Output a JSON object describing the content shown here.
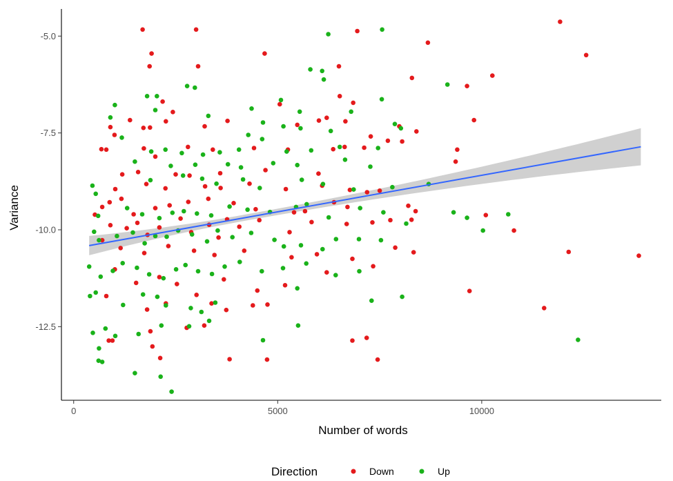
{
  "chart_data": {
    "type": "scatter",
    "xlabel": "Number of words",
    "ylabel": "Variance",
    "xlim": [
      -300,
      14400
    ],
    "ylim": [
      -14.4,
      -4.3
    ],
    "x_ticks": [
      {
        "value": 0,
        "label": "0"
      },
      {
        "value": 5000,
        "label": "5000"
      },
      {
        "value": 10000,
        "label": "10000"
      }
    ],
    "y_ticks": [
      {
        "value": -5.0,
        "label": "-5.0"
      },
      {
        "value": -7.5,
        "label": "-7.5"
      },
      {
        "value": -10.0,
        "label": "-10.0"
      },
      {
        "value": -12.5,
        "label": "-12.5"
      }
    ],
    "grid": false,
    "legend": {
      "title": "Direction",
      "position": "bottom"
    },
    "trend": {
      "method": "linear",
      "x_range": [
        380,
        13900
      ],
      "intercept": -10.48,
      "slope": 0.0001887,
      "ci_halfwidth_ends": [
        0.25,
        0.48
      ],
      "ci_halfwidth_center": 0.08,
      "center_x": 4200,
      "color": "#3366FF",
      "band_color": "#C8C8C8"
    },
    "series": [
      {
        "name": "Down",
        "color": "#E41A1C",
        "points": [
          [
            1690,
            -4.83
          ],
          [
            3000,
            -4.83
          ],
          [
            6950,
            -4.87
          ],
          [
            11920,
            -4.63
          ],
          [
            12560,
            -5.49
          ],
          [
            8680,
            -5.17
          ],
          [
            1910,
            -5.45
          ],
          [
            1860,
            -5.78
          ],
          [
            3050,
            -5.78
          ],
          [
            4680,
            -5.45
          ],
          [
            6500,
            -5.78
          ],
          [
            8290,
            -6.08
          ],
          [
            10260,
            -6.02
          ],
          [
            9640,
            -6.29
          ],
          [
            6520,
            -6.55
          ],
          [
            2180,
            -6.69
          ],
          [
            2430,
            -6.96
          ],
          [
            5050,
            -6.76
          ],
          [
            6850,
            -6.72
          ],
          [
            900,
            -7.35
          ],
          [
            1000,
            -7.55
          ],
          [
            1380,
            -7.17
          ],
          [
            1710,
            -7.37
          ],
          [
            1870,
            -7.36
          ],
          [
            2260,
            -7.2
          ],
          [
            3210,
            -7.33
          ],
          [
            3770,
            -7.19
          ],
          [
            5480,
            -7.29
          ],
          [
            6010,
            -7.18
          ],
          [
            6200,
            -7.11
          ],
          [
            6660,
            -7.2
          ],
          [
            7980,
            -7.33
          ],
          [
            8400,
            -7.46
          ],
          [
            9810,
            -7.17
          ],
          [
            7700,
            -7.7
          ],
          [
            8050,
            -7.72
          ],
          [
            7280,
            -7.59
          ],
          [
            680,
            -7.92
          ],
          [
            800,
            -7.93
          ],
          [
            1720,
            -7.9
          ],
          [
            2800,
            -7.86
          ],
          [
            3410,
            -7.93
          ],
          [
            4420,
            -7.89
          ],
          [
            5250,
            -7.93
          ],
          [
            6360,
            -7.92
          ],
          [
            6640,
            -7.86
          ],
          [
            7120,
            -7.88
          ],
          [
            9400,
            -7.93
          ],
          [
            2000,
            -8.11
          ],
          [
            9360,
            -8.24
          ],
          [
            1190,
            -8.57
          ],
          [
            1580,
            -8.51
          ],
          [
            2500,
            -8.57
          ],
          [
            2840,
            -8.6
          ],
          [
            3590,
            -8.54
          ],
          [
            4700,
            -8.46
          ],
          [
            6000,
            -8.55
          ],
          [
            1020,
            -8.95
          ],
          [
            1780,
            -8.82
          ],
          [
            2250,
            -8.93
          ],
          [
            3220,
            -8.88
          ],
          [
            3600,
            -8.92
          ],
          [
            4310,
            -8.81
          ],
          [
            5200,
            -8.95
          ],
          [
            6090,
            -8.86
          ],
          [
            6770,
            -8.97
          ],
          [
            7190,
            -9.03
          ],
          [
            7500,
            -8.99
          ],
          [
            520,
            -9.61
          ],
          [
            700,
            -9.41
          ],
          [
            880,
            -9.29
          ],
          [
            1170,
            -9.2
          ],
          [
            1470,
            -9.6
          ],
          [
            2000,
            -9.44
          ],
          [
            2350,
            -9.37
          ],
          [
            2810,
            -9.28
          ],
          [
            3300,
            -9.2
          ],
          [
            3920,
            -9.31
          ],
          [
            4460,
            -9.47
          ],
          [
            5400,
            -9.55
          ],
          [
            5670,
            -9.52
          ],
          [
            6380,
            -9.29
          ],
          [
            6710,
            -9.41
          ],
          [
            8200,
            -9.38
          ],
          [
            8380,
            -9.52
          ],
          [
            900,
            -9.88
          ],
          [
            1300,
            -9.96
          ],
          [
            1560,
            -9.82
          ],
          [
            1810,
            -10.13
          ],
          [
            2100,
            -9.94
          ],
          [
            2620,
            -9.71
          ],
          [
            2880,
            -10.06
          ],
          [
            3320,
            -9.87
          ],
          [
            3550,
            -10.2
          ],
          [
            3760,
            -9.73
          ],
          [
            4060,
            -9.92
          ],
          [
            4550,
            -9.75
          ],
          [
            5290,
            -10.06
          ],
          [
            5830,
            -9.8
          ],
          [
            6690,
            -9.85
          ],
          [
            7320,
            -9.81
          ],
          [
            7760,
            -9.75
          ],
          [
            8280,
            -9.74
          ],
          [
            10100,
            -9.62
          ],
          [
            10790,
            -10.02
          ],
          [
            700,
            -10.27
          ],
          [
            1150,
            -10.47
          ],
          [
            1730,
            -10.6
          ],
          [
            2320,
            -10.42
          ],
          [
            2950,
            -10.54
          ],
          [
            3450,
            -10.65
          ],
          [
            4180,
            -10.54
          ],
          [
            5340,
            -10.71
          ],
          [
            5960,
            -10.63
          ],
          [
            6830,
            -10.75
          ],
          [
            7880,
            -10.46
          ],
          [
            8330,
            -10.58
          ],
          [
            13850,
            -10.67
          ],
          [
            12130,
            -10.57
          ],
          [
            800,
            -11.71
          ],
          [
            1010,
            -11.02
          ],
          [
            1530,
            -11.37
          ],
          [
            2100,
            -11.22
          ],
          [
            2530,
            -11.4
          ],
          [
            3010,
            -11.68
          ],
          [
            3680,
            -11.28
          ],
          [
            4500,
            -11.57
          ],
          [
            5180,
            -11.43
          ],
          [
            6200,
            -11.1
          ],
          [
            7340,
            -10.94
          ],
          [
            9700,
            -11.58
          ],
          [
            1800,
            -12.06
          ],
          [
            2260,
            -11.9
          ],
          [
            3380,
            -11.9
          ],
          [
            3740,
            -12.07
          ],
          [
            4390,
            -11.95
          ],
          [
            4750,
            -11.93
          ],
          [
            1880,
            -12.62
          ],
          [
            2770,
            -12.53
          ],
          [
            3200,
            -12.47
          ],
          [
            860,
            -12.86
          ],
          [
            950,
            -12.86
          ],
          [
            1930,
            -13.01
          ],
          [
            2120,
            -13.31
          ],
          [
            3820,
            -13.34
          ],
          [
            4740,
            -13.35
          ],
          [
            6830,
            -12.86
          ],
          [
            7180,
            -12.79
          ],
          [
            7450,
            -13.35
          ],
          [
            11530,
            -12.02
          ]
        ]
      },
      {
        "name": "Up",
        "color": "#1AB21A",
        "points": [
          [
            7560,
            -4.83
          ],
          [
            6240,
            -4.95
          ],
          [
            5800,
            -5.86
          ],
          [
            6090,
            -5.9
          ],
          [
            6130,
            -6.12
          ],
          [
            2780,
            -6.29
          ],
          [
            9160,
            -6.25
          ],
          [
            2970,
            -6.33
          ],
          [
            1800,
            -6.55
          ],
          [
            2040,
            -6.55
          ],
          [
            1010,
            -6.78
          ],
          [
            5080,
            -6.65
          ],
          [
            4360,
            -6.87
          ],
          [
            5540,
            -6.95
          ],
          [
            6800,
            -6.95
          ],
          [
            7550,
            -6.63
          ],
          [
            2000,
            -6.91
          ],
          [
            900,
            -7.1
          ],
          [
            1180,
            -7.62
          ],
          [
            3300,
            -7.06
          ],
          [
            4640,
            -7.23
          ],
          [
            5140,
            -7.33
          ],
          [
            5560,
            -7.38
          ],
          [
            6300,
            -7.45
          ],
          [
            7870,
            -7.27
          ],
          [
            8020,
            -7.38
          ],
          [
            4280,
            -7.55
          ],
          [
            4620,
            -7.66
          ],
          [
            1900,
            -7.98
          ],
          [
            2250,
            -7.93
          ],
          [
            2650,
            -8.02
          ],
          [
            3170,
            -8.06
          ],
          [
            3580,
            -8.0
          ],
          [
            4050,
            -7.93
          ],
          [
            5220,
            -7.98
          ],
          [
            5820,
            -7.95
          ],
          [
            6520,
            -7.86
          ],
          [
            7460,
            -7.89
          ],
          [
            1500,
            -8.24
          ],
          [
            2380,
            -8.35
          ],
          [
            2980,
            -8.32
          ],
          [
            3780,
            -8.31
          ],
          [
            4100,
            -8.39
          ],
          [
            4890,
            -8.28
          ],
          [
            5480,
            -8.33
          ],
          [
            6650,
            -8.19
          ],
          [
            7270,
            -8.37
          ],
          [
            460,
            -8.86
          ],
          [
            540,
            -9.07
          ],
          [
            1880,
            -8.72
          ],
          [
            2680,
            -8.6
          ],
          [
            3150,
            -8.68
          ],
          [
            3500,
            -8.81
          ],
          [
            4150,
            -8.7
          ],
          [
            4560,
            -8.92
          ],
          [
            5590,
            -8.71
          ],
          [
            6110,
            -8.82
          ],
          [
            6860,
            -8.96
          ],
          [
            7810,
            -8.9
          ],
          [
            8700,
            -8.82
          ],
          [
            600,
            -9.64
          ],
          [
            1310,
            -9.44
          ],
          [
            1680,
            -9.6
          ],
          [
            2100,
            -9.7
          ],
          [
            2420,
            -9.56
          ],
          [
            2700,
            -9.52
          ],
          [
            3020,
            -9.58
          ],
          [
            3370,
            -9.63
          ],
          [
            3820,
            -9.4
          ],
          [
            4260,
            -9.48
          ],
          [
            4810,
            -9.54
          ],
          [
            5450,
            -9.41
          ],
          [
            5710,
            -9.34
          ],
          [
            6250,
            -9.68
          ],
          [
            7020,
            -9.44
          ],
          [
            7590,
            -9.55
          ],
          [
            9310,
            -9.55
          ],
          [
            9640,
            -9.69
          ],
          [
            500,
            -10.05
          ],
          [
            620,
            -10.27
          ],
          [
            1060,
            -10.16
          ],
          [
            1450,
            -10.07
          ],
          [
            1740,
            -10.35
          ],
          [
            2000,
            -10.16
          ],
          [
            2280,
            -10.18
          ],
          [
            2560,
            -10.02
          ],
          [
            2900,
            -10.12
          ],
          [
            3270,
            -10.3
          ],
          [
            3530,
            -10.02
          ],
          [
            3890,
            -10.19
          ],
          [
            4350,
            -10.08
          ],
          [
            4920,
            -10.26
          ],
          [
            5150,
            -10.43
          ],
          [
            5570,
            -10.4
          ],
          [
            6100,
            -10.5
          ],
          [
            6430,
            -10.24
          ],
          [
            6990,
            -10.24
          ],
          [
            7530,
            -10.27
          ],
          [
            8150,
            -9.84
          ],
          [
            10030,
            -10.02
          ],
          [
            10650,
            -9.6
          ],
          [
            380,
            -10.95
          ],
          [
            400,
            -11.71
          ],
          [
            540,
            -11.62
          ],
          [
            660,
            -11.21
          ],
          [
            960,
            -11.06
          ],
          [
            1200,
            -10.86
          ],
          [
            1550,
            -10.98
          ],
          [
            1850,
            -11.15
          ],
          [
            2200,
            -11.25
          ],
          [
            2510,
            -11.02
          ],
          [
            2740,
            -10.91
          ],
          [
            3050,
            -11.07
          ],
          [
            3390,
            -11.14
          ],
          [
            3700,
            -10.95
          ],
          [
            4070,
            -10.83
          ],
          [
            4610,
            -11.07
          ],
          [
            5130,
            -10.99
          ],
          [
            5700,
            -10.87
          ],
          [
            6420,
            -11.17
          ],
          [
            7000,
            -11.07
          ],
          [
            1210,
            -11.94
          ],
          [
            1700,
            -11.67
          ],
          [
            2050,
            -11.73
          ],
          [
            2260,
            -11.95
          ],
          [
            2870,
            -12.02
          ],
          [
            3130,
            -12.12
          ],
          [
            3470,
            -11.88
          ],
          [
            5480,
            -11.51
          ],
          [
            7300,
            -11.83
          ],
          [
            8050,
            -11.73
          ],
          [
            470,
            -12.66
          ],
          [
            620,
            -13.06
          ],
          [
            780,
            -12.55
          ],
          [
            1020,
            -12.74
          ],
          [
            1590,
            -12.69
          ],
          [
            2150,
            -12.47
          ],
          [
            2830,
            -12.49
          ],
          [
            3320,
            -12.35
          ],
          [
            4640,
            -12.85
          ],
          [
            5500,
            -12.47
          ],
          [
            610,
            -13.38
          ],
          [
            700,
            -13.41
          ],
          [
            1500,
            -13.7
          ],
          [
            2130,
            -13.79
          ],
          [
            2400,
            -14.18
          ],
          [
            12360,
            -12.84
          ]
        ]
      }
    ]
  }
}
